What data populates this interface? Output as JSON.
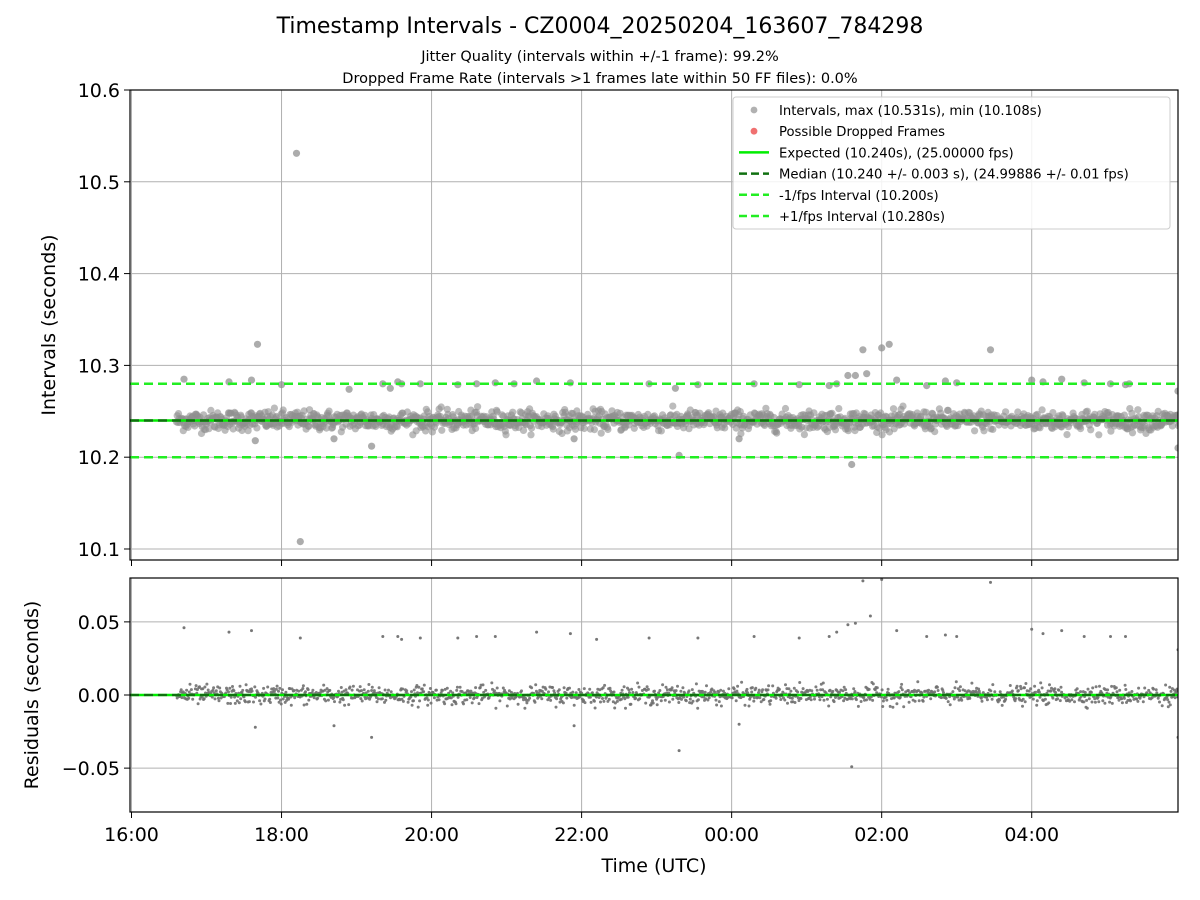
{
  "figure": {
    "title": "Timestamp Intervals - CZ0004_20250204_163607_784298",
    "subtitle_1": "Jitter Quality (intervals within +/-1 frame): 99.2%",
    "subtitle_2": "Dropped Frame Rate (intervals >1 frames late within 50 FF files): 0.0%"
  },
  "colors": {
    "points": "#909090",
    "residual_points": "#707070",
    "dropped": "#f07070",
    "expected": "#00ee00",
    "median": "#107010",
    "bounds": "#22ee22",
    "grid": "#b0b0b0"
  },
  "chart_data": [
    {
      "type": "scatter",
      "panel": "top",
      "ylabel": "Intervals (seconds)",
      "xlabel": "",
      "x_unit": "hours since 16:00 UTC on x-axis clock",
      "xlim": [
        -0.02,
        13.95
      ],
      "ylim": [
        10.088,
        10.6
      ],
      "yticks": [
        10.1,
        10.2,
        10.3,
        10.4,
        10.5,
        10.6
      ],
      "ytick_labels": [
        "10.1",
        "10.2",
        "10.3",
        "10.4",
        "10.5",
        "10.6"
      ],
      "xticks": [
        0,
        2,
        4,
        6,
        8,
        10,
        12
      ],
      "grid": true,
      "legend_position": "top-right",
      "legend": [
        "Intervals, max (10.531s), min (10.108s)",
        "Possible Dropped Frames",
        "Expected (10.240s), (25.00000 fps)",
        "Median (10.240 +/- 0.003 s), (24.99886 +/- 0.01 fps)",
        "-1/fps Interval (10.200s)",
        "+1/fps Interval (10.280s)"
      ],
      "expected": 10.24,
      "median": 10.24,
      "lower_bound": 10.2,
      "upper_bound": 10.28,
      "max": 10.531,
      "min": 10.108,
      "data_start_hours": 0.6,
      "data_end_hours": 13.95,
      "typical_spread": 0.012,
      "outliers": [
        [
          0.7,
          10.285
        ],
        [
          1.3,
          10.282
        ],
        [
          1.6,
          10.284
        ],
        [
          1.68,
          10.323
        ],
        [
          1.65,
          10.218
        ],
        [
          2.2,
          10.531
        ],
        [
          2.25,
          10.108
        ],
        [
          2.0,
          10.279
        ],
        [
          2.7,
          10.22
        ],
        [
          2.9,
          10.274
        ],
        [
          3.2,
          10.212
        ],
        [
          3.35,
          10.28
        ],
        [
          3.45,
          10.275
        ],
        [
          3.55,
          10.282
        ],
        [
          3.6,
          10.28
        ],
        [
          3.85,
          10.28
        ],
        [
          4.35,
          10.279
        ],
        [
          4.6,
          10.28
        ],
        [
          4.85,
          10.281
        ],
        [
          5.1,
          10.28
        ],
        [
          5.4,
          10.283
        ],
        [
          5.85,
          10.281
        ],
        [
          5.9,
          10.22
        ],
        [
          6.9,
          10.28
        ],
        [
          7.25,
          10.275
        ],
        [
          7.3,
          10.202
        ],
        [
          7.55,
          10.279
        ],
        [
          8.3,
          10.28
        ],
        [
          8.1,
          10.22
        ],
        [
          8.9,
          10.279
        ],
        [
          9.3,
          10.278
        ],
        [
          9.4,
          10.28
        ],
        [
          9.55,
          10.289
        ],
        [
          9.65,
          10.289
        ],
        [
          9.6,
          10.192
        ],
        [
          9.75,
          10.317
        ],
        [
          9.8,
          10.291
        ],
        [
          10.0,
          10.319
        ],
        [
          10.1,
          10.323
        ],
        [
          10.2,
          10.284
        ],
        [
          10.6,
          10.278
        ],
        [
          10.85,
          10.283
        ],
        [
          11.0,
          10.281
        ],
        [
          11.45,
          10.317
        ],
        [
          12.0,
          10.284
        ],
        [
          12.15,
          10.282
        ],
        [
          12.4,
          10.285
        ],
        [
          12.7,
          10.281
        ],
        [
          13.05,
          10.28
        ],
        [
          13.25,
          10.279
        ],
        [
          13.3,
          10.28
        ],
        [
          13.95,
          10.272
        ],
        [
          13.95,
          10.21
        ]
      ]
    },
    {
      "type": "scatter",
      "panel": "bottom",
      "ylabel": "Residuals (seconds)",
      "xlabel": "Time (UTC)",
      "xlim": [
        -0.02,
        13.95
      ],
      "ylim": [
        -0.08,
        0.08
      ],
      "yticks": [
        -0.05,
        0.0,
        0.05
      ],
      "ytick_labels": [
        "−0.05",
        "0.00",
        "0.05"
      ],
      "xticks": [
        0,
        2,
        4,
        6,
        8,
        10,
        12
      ],
      "xtick_labels": [
        "16:00",
        "18:00",
        "20:00",
        "22:00",
        "00:00",
        "02:00",
        "04:00"
      ],
      "grid": true,
      "zero_line": 0.0,
      "typical_spread": 0.007,
      "outliers": [
        [
          0.7,
          0.046
        ],
        [
          1.3,
          0.043
        ],
        [
          1.6,
          0.044
        ],
        [
          1.65,
          -0.022
        ],
        [
          2.25,
          0.039
        ],
        [
          2.7,
          -0.021
        ],
        [
          3.2,
          -0.029
        ],
        [
          3.35,
          0.04
        ],
        [
          3.55,
          0.04
        ],
        [
          3.6,
          0.038
        ],
        [
          3.85,
          0.039
        ],
        [
          4.35,
          0.039
        ],
        [
          4.6,
          0.04
        ],
        [
          4.85,
          0.04
        ],
        [
          5.4,
          0.043
        ],
        [
          5.85,
          0.042
        ],
        [
          5.9,
          -0.021
        ],
        [
          6.2,
          0.038
        ],
        [
          6.9,
          0.039
        ],
        [
          7.3,
          -0.038
        ],
        [
          7.55,
          0.039
        ],
        [
          8.1,
          -0.02
        ],
        [
          8.3,
          0.04
        ],
        [
          8.9,
          0.039
        ],
        [
          9.3,
          0.04
        ],
        [
          9.4,
          0.043
        ],
        [
          9.55,
          0.048
        ],
        [
          9.65,
          0.049
        ],
        [
          9.6,
          -0.049
        ],
        [
          9.75,
          0.078
        ],
        [
          9.85,
          0.054
        ],
        [
          10.0,
          0.079
        ],
        [
          10.2,
          0.044
        ],
        [
          10.6,
          0.04
        ],
        [
          10.85,
          0.041
        ],
        [
          11.0,
          0.04
        ],
        [
          11.45,
          0.077
        ],
        [
          12.0,
          0.045
        ],
        [
          12.15,
          0.042
        ],
        [
          12.4,
          0.044
        ],
        [
          12.7,
          0.04
        ],
        [
          13.05,
          0.04
        ],
        [
          13.25,
          0.04
        ],
        [
          13.95,
          0.031
        ],
        [
          13.95,
          -0.029
        ]
      ]
    }
  ]
}
